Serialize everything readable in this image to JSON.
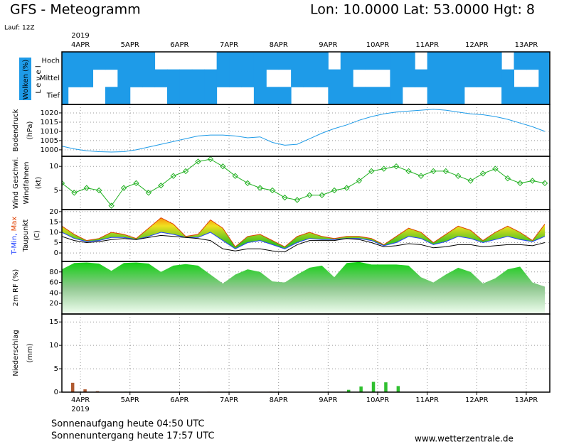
{
  "header": {
    "title": "GFS - Meteogramm",
    "location": "Lon: 10.0000 Lat: 53.0000 Hgt: 8",
    "run": "Lauf: 12Z"
  },
  "footer": {
    "sunrise": "Sonnenaufgang heute 04:50 UTC",
    "sunset": "Sonnenuntergang heute 17:57 UTC",
    "url": "www.wetterzentrale.de"
  },
  "time_axis": {
    "year": "2019",
    "xlim": [
      0,
      39.4
    ],
    "xticks": [
      {
        "value": 1.5,
        "label": "4APR"
      },
      {
        "value": 5.5,
        "label": "5APR"
      },
      {
        "value": 9.5,
        "label": "6APR"
      },
      {
        "value": 13.5,
        "label": "7APR"
      },
      {
        "value": 17.5,
        "label": "8APR"
      },
      {
        "value": 21.5,
        "label": "9APR"
      },
      {
        "value": 25.5,
        "label": "10APR"
      },
      {
        "value": 29.5,
        "label": "11APR"
      },
      {
        "value": 33.5,
        "label": "12APR"
      },
      {
        "value": 37.5,
        "label": "13APR"
      }
    ],
    "x": [
      0,
      1,
      2,
      3,
      4,
      5,
      6,
      7,
      8,
      9,
      10,
      11,
      12,
      13,
      14,
      15,
      16,
      17,
      18,
      19,
      20,
      21,
      22,
      23,
      24,
      25,
      26,
      27,
      28,
      29,
      30,
      31,
      32,
      33,
      34,
      35,
      36,
      37,
      38,
      39
    ]
  },
  "chart_data": [
    {
      "type": "cloud-cover",
      "ylabel": "Wolken (%)",
      "ylabel2": "L e v e l",
      "ylim": [
        0,
        100
      ],
      "color": "#1e9be8",
      "series": [
        {
          "name": "Hoch",
          "values": [
            100,
            100,
            100,
            100,
            100,
            100,
            100,
            100,
            0,
            0,
            0,
            0,
            0,
            100,
            100,
            100,
            100,
            100,
            100,
            100,
            100,
            100,
            0,
            100,
            100,
            100,
            100,
            100,
            100,
            0,
            100,
            100,
            100,
            100,
            100,
            100,
            0,
            100,
            100,
            100
          ]
        },
        {
          "name": "Mittel",
          "values": [
            100,
            100,
            100,
            0,
            0,
            100,
            100,
            100,
            100,
            100,
            100,
            100,
            100,
            100,
            100,
            100,
            100,
            0,
            0,
            100,
            100,
            100,
            100,
            100,
            0,
            0,
            0,
            100,
            100,
            100,
            100,
            100,
            100,
            100,
            100,
            100,
            100,
            0,
            0,
            100
          ]
        },
        {
          "name": "Tief",
          "values": [
            100,
            0,
            0,
            0,
            100,
            100,
            0,
            0,
            0,
            100,
            100,
            100,
            100,
            0,
            0,
            0,
            100,
            100,
            100,
            0,
            0,
            0,
            100,
            100,
            100,
            100,
            100,
            100,
            0,
            0,
            100,
            100,
            100,
            0,
            0,
            0,
            100,
            100,
            100,
            100
          ]
        }
      ]
    },
    {
      "type": "line",
      "ylabel": "Bodendruck",
      "ylabel2": "(hPa)",
      "ylim": [
        996.5,
        1024.6
      ],
      "yticks": [
        1000,
        1005,
        1010,
        1015,
        1020
      ],
      "grid": true,
      "series": [
        {
          "color": "#1e9be8",
          "values": [
            1002,
            1000.5,
            999.5,
            999,
            998.8,
            999,
            1000,
            1001.5,
            1003,
            1004.5,
            1006,
            1007.5,
            1008,
            1008,
            1007.5,
            1006.5,
            1007,
            1004,
            1002.5,
            1003,
            1006,
            1009,
            1011.5,
            1013.5,
            1016,
            1018,
            1019.5,
            1020.5,
            1021,
            1021.5,
            1022,
            1021.5,
            1020.5,
            1019.5,
            1019,
            1018,
            1016.5,
            1014.5,
            1012.5,
            1010
          ]
        }
      ]
    },
    {
      "type": "line",
      "ylabel": "Wind Geschwi.",
      "ylabel2": "Windfahnen",
      "ylabel3": "(kt)",
      "ylim": [
        1,
        12.1
      ],
      "yticks": [
        5,
        10
      ],
      "grid": true,
      "markers": true,
      "series": [
        {
          "color": "#20b020",
          "values": [
            6.5,
            4.5,
            5.5,
            5,
            1.8,
            5.5,
            6.5,
            4.5,
            6,
            8,
            9,
            11,
            11.5,
            10,
            8,
            6.5,
            5.5,
            5,
            3.5,
            3,
            4,
            4,
            5,
            5.5,
            7,
            9,
            9.5,
            10,
            9,
            8,
            9,
            9,
            8,
            7,
            8.5,
            9.5,
            7.5,
            6.5,
            7,
            6.5
          ]
        }
      ]
    },
    {
      "type": "temperature",
      "ylabel": "T-Min,",
      "ylabel_max": "Max",
      "ylabel2": "Taupunkt",
      "ylabel3": "(C)",
      "ylim": [
        -4.1,
        21
      ],
      "yticks": [
        0,
        5,
        10,
        15,
        20
      ],
      "grid": true,
      "series": [
        {
          "color": "#e04000",
          "values": [
            13,
            9,
            6,
            7,
            10,
            9,
            7,
            12,
            17,
            14,
            8,
            9,
            16,
            12,
            3,
            8,
            9,
            6,
            3,
            8,
            10,
            8,
            7,
            8,
            8,
            7,
            4,
            8,
            12,
            10,
            5,
            9,
            13,
            11,
            6,
            10,
            13,
            10,
            6,
            14
          ]
        },
        {
          "color": "#2040ff",
          "values": [
            10,
            7,
            5.5,
            6,
            7.5,
            7.5,
            6.5,
            8,
            10,
            9,
            7.5,
            7.5,
            10,
            6,
            2,
            5,
            6,
            4,
            2,
            5,
            7,
            6.5,
            6.5,
            7,
            7,
            6,
            3.5,
            5,
            8,
            7,
            4,
            5.5,
            8,
            7,
            5,
            6.5,
            8,
            6.5,
            5.5,
            8
          ]
        },
        {
          "color": "#000000",
          "values": [
            8,
            6,
            5,
            5.5,
            6.5,
            7,
            6.5,
            7.5,
            8.5,
            8,
            7.5,
            7,
            6,
            2,
            1,
            2,
            2,
            1,
            0.5,
            4,
            6,
            6,
            6,
            7,
            6.5,
            5,
            3,
            3.5,
            4.5,
            4,
            2.5,
            3,
            4,
            4,
            3,
            3.5,
            4,
            4,
            3.5,
            5
          ]
        }
      ]
    },
    {
      "type": "area",
      "ylabel": "2m RF (%)",
      "ylim": [
        0,
        100
      ],
      "yticks": [
        20,
        40,
        60,
        80
      ],
      "grid": true,
      "series": [
        {
          "color": "#10c010",
          "values": [
            85,
            97,
            98,
            96,
            82,
            97,
            98,
            96,
            80,
            92,
            95,
            92,
            75,
            58,
            75,
            85,
            80,
            62,
            60,
            75,
            88,
            92,
            70,
            97,
            99,
            94,
            94,
            94,
            92,
            70,
            60,
            75,
            88,
            80,
            58,
            68,
            85,
            90,
            60,
            52
          ]
        }
      ]
    },
    {
      "type": "bar",
      "ylabel": "Niederschlag",
      "ylabel2": "(mm)",
      "ylim": [
        0,
        16.7
      ],
      "yticks": [
        0,
        5,
        10,
        15
      ],
      "grid": true,
      "series": [
        {
          "color": "#b05a30",
          "values": [
            1,
            2,
            0.6,
            0.2,
            0,
            0,
            0,
            0,
            0,
            0,
            0,
            0,
            0.1,
            0,
            0,
            0,
            0,
            0.1,
            0,
            0,
            0,
            0,
            0,
            0,
            0,
            0,
            0,
            0,
            0,
            0,
            0,
            0,
            0,
            0,
            0,
            0,
            0,
            0,
            0,
            0
          ]
        },
        {
          "color": "#30c030",
          "values": [
            0,
            0,
            0,
            0,
            0,
            0.1,
            0,
            0,
            0,
            0,
            0,
            0,
            0,
            0,
            0,
            0,
            0,
            0,
            0,
            0,
            0,
            0,
            0,
            0.5,
            1.2,
            2.2,
            2.1,
            1.3,
            0,
            0,
            0,
            0,
            0,
            0,
            0,
            0,
            0,
            0,
            0,
            0
          ]
        }
      ]
    }
  ]
}
